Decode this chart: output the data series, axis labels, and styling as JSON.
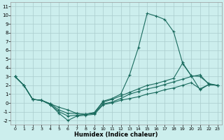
{
  "xlabel": "Humidex (Indice chaleur)",
  "bg_color": "#cceeed",
  "grid_color": "#aacccc",
  "line_color": "#1a6b5e",
  "xlim": [
    -0.5,
    23.5
  ],
  "ylim": [
    -2.5,
    11.5
  ],
  "xticks": [
    0,
    1,
    2,
    3,
    4,
    5,
    6,
    7,
    8,
    9,
    10,
    11,
    12,
    13,
    14,
    15,
    16,
    17,
    18,
    19,
    20,
    21,
    22,
    23
  ],
  "yticks": [
    -2,
    -1,
    0,
    1,
    2,
    3,
    4,
    5,
    6,
    7,
    8,
    9,
    10,
    11
  ],
  "lines": [
    [
      3.0,
      2.0,
      0.4,
      0.3,
      -0.2,
      -1.2,
      -2.0,
      -1.5,
      -1.4,
      -1.3,
      -0.2,
      0.0,
      0.3,
      0.5,
      0.7,
      1.0,
      1.2,
      1.5,
      1.7,
      2.0,
      2.3,
      1.6,
      2.1,
      2.0
    ],
    [
      3.0,
      2.0,
      0.4,
      0.3,
      -0.2,
      -1.0,
      -1.5,
      -1.4,
      -1.3,
      -1.2,
      -0.1,
      0.1,
      0.5,
      1.0,
      1.3,
      1.6,
      1.8,
      2.1,
      2.4,
      2.7,
      3.0,
      3.2,
      2.1,
      2.0
    ],
    [
      3.0,
      2.0,
      0.4,
      0.3,
      -0.1,
      -0.8,
      -1.2,
      -1.2,
      -1.3,
      -1.1,
      0.1,
      0.4,
      0.8,
      1.2,
      1.6,
      2.0,
      2.2,
      2.5,
      2.8,
      4.5,
      3.1,
      3.0,
      2.2,
      2.0
    ],
    [
      3.0,
      2.0,
      0.4,
      0.3,
      -0.1,
      -0.5,
      -0.8,
      -1.2,
      -1.3,
      -1.1,
      0.2,
      0.5,
      1.0,
      3.2,
      6.3,
      10.2,
      9.9,
      9.5,
      8.1,
      4.6,
      3.1,
      1.5,
      2.1,
      2.0
    ]
  ]
}
